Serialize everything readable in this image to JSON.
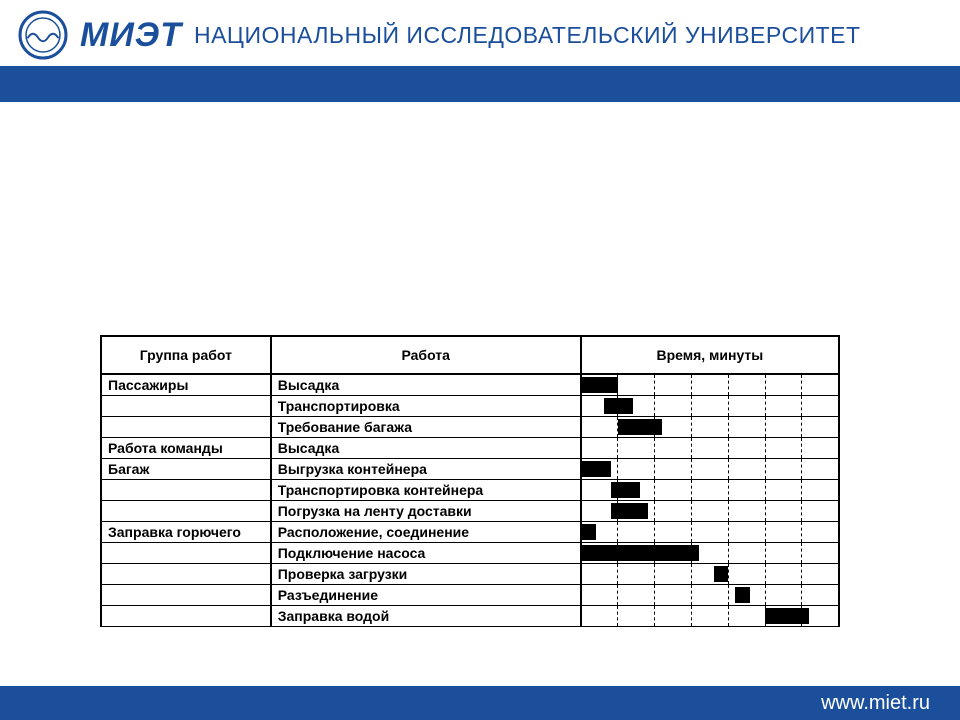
{
  "header": {
    "logo_label": "МИЭТ",
    "main": "МИЭТ",
    "sub": "НАЦИОНАЛЬНЫЙ ИССЛЕДОВАТЕЛЬСКИЙ УНИВЕРСИТЕТ"
  },
  "footer": {
    "url": "www.miet.ru"
  },
  "colors": {
    "brand_blue": "#1b4f9c",
    "bar_color": "#000000",
    "grid_dash": "#000000",
    "background": "#ffffff"
  },
  "gantt": {
    "columns": {
      "group": "Группа работ",
      "task": "Работа",
      "time": "Время, минуты"
    },
    "time_axis": {
      "min": 0,
      "max": 35,
      "tick_step": 5,
      "ticks": 7
    },
    "rows": [
      {
        "group": "Пассажиры",
        "task": "Высадка",
        "start": 0,
        "end": 5
      },
      {
        "group": "",
        "task": "Транспортировка",
        "start": 3,
        "end": 7
      },
      {
        "group": "",
        "task": "Требование багажа",
        "start": 5,
        "end": 11
      },
      {
        "group": "Работа команды",
        "task": "Высадка",
        "start": null,
        "end": null
      },
      {
        "group": "Багаж",
        "task": "Выгрузка контейнера",
        "start": 0,
        "end": 4
      },
      {
        "group": "",
        "task": "Транспортировка контейнера",
        "start": 4,
        "end": 8
      },
      {
        "group": "",
        "task": "Погрузка на ленту доставки",
        "start": 4,
        "end": 9
      },
      {
        "group": "Заправка горючего",
        "task": "Расположение, соединение",
        "start": 0,
        "end": 2
      },
      {
        "group": "",
        "task": "Подключение насоса",
        "start": 0,
        "end": 16
      },
      {
        "group": "",
        "task": "Проверка загрузки",
        "start": 18,
        "end": 20
      },
      {
        "group": "",
        "task": "Разъединение",
        "start": 21,
        "end": 23
      },
      {
        "group": "",
        "task": "Заправка водой",
        "start": 25,
        "end": 31
      }
    ],
    "col_widths": {
      "group_pct": 23,
      "task_pct": 42,
      "time_pct": 35
    }
  }
}
